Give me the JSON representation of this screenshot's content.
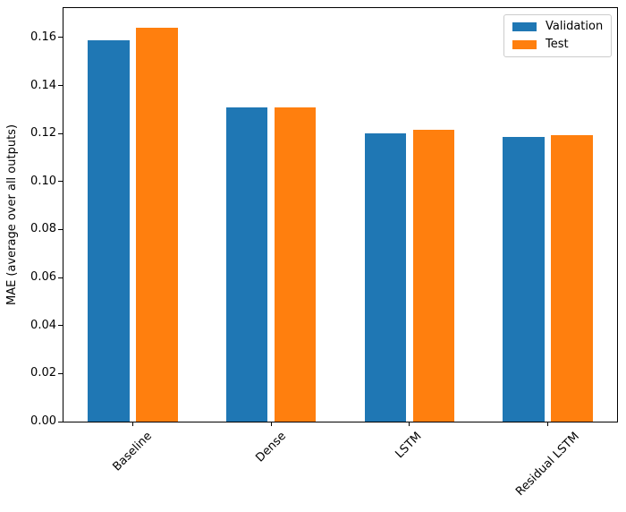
{
  "chart_data": {
    "type": "bar",
    "title": "",
    "categories": [
      "Baseline",
      "Dense",
      "LSTM",
      "Residual LSTM"
    ],
    "series": [
      {
        "name": "Validation",
        "color": "#1f77b4",
        "values": [
          0.159,
          0.131,
          0.12,
          0.1185
        ]
      },
      {
        "name": "Test",
        "color": "#ff7f0e",
        "values": [
          0.164,
          0.131,
          0.1215,
          0.1193
        ]
      }
    ],
    "xlabel": "",
    "ylabel": "MAE (average over all outputs)",
    "ylim": [
      0,
      0.1723
    ],
    "yticks": [
      "0.00",
      "0.02",
      "0.04",
      "0.06",
      "0.08",
      "0.10",
      "0.12",
      "0.14",
      "0.16"
    ],
    "grid": false,
    "legend_position": "upper right",
    "legend_border_color": "#cccccc",
    "axis_color": "#000000",
    "background_color": "#ffffff",
    "bar_width_fraction": 0.3,
    "bar_group_offsets": [
      -0.175,
      0.175
    ],
    "xtick_rotation_deg": 45
  }
}
